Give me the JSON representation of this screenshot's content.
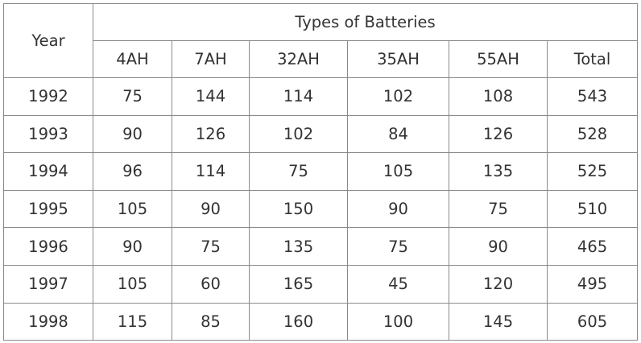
{
  "table": {
    "row_header": "Year",
    "group_header": "Types of Batteries",
    "columns": [
      "4AH",
      "7AH",
      "32AH",
      "35AH",
      "55AH",
      "Total"
    ],
    "rows": [
      {
        "year": "1992",
        "values": [
          "75",
          "144",
          "114",
          "102",
          "108",
          "543"
        ]
      },
      {
        "year": "1993",
        "values": [
          "90",
          "126",
          "102",
          "84",
          "126",
          "528"
        ]
      },
      {
        "year": "1994",
        "values": [
          "96",
          "114",
          "75",
          "105",
          "135",
          "525"
        ]
      },
      {
        "year": "1995",
        "values": [
          "105",
          "90",
          "150",
          "90",
          "75",
          "510"
        ]
      },
      {
        "year": "1996",
        "values": [
          "90",
          "75",
          "135",
          "75",
          "90",
          "465"
        ]
      },
      {
        "year": "1997",
        "values": [
          "105",
          "60",
          "165",
          "45",
          "120",
          "495"
        ]
      },
      {
        "year": "1998",
        "values": [
          "115",
          "85",
          "160",
          "100",
          "145",
          "605"
        ]
      }
    ]
  },
  "chart_data": {
    "type": "table",
    "row_header": "Year",
    "group_header": "Types of Batteries",
    "columns": [
      "4AH",
      "7AH",
      "32AH",
      "35AH",
      "55AH",
      "Total"
    ],
    "rows": [
      "1992",
      "1993",
      "1994",
      "1995",
      "1996",
      "1997",
      "1998"
    ],
    "values": [
      [
        75,
        144,
        114,
        102,
        108,
        543
      ],
      [
        90,
        126,
        102,
        84,
        126,
        528
      ],
      [
        96,
        114,
        75,
        105,
        135,
        525
      ],
      [
        105,
        90,
        150,
        90,
        75,
        510
      ],
      [
        90,
        75,
        135,
        75,
        90,
        465
      ],
      [
        105,
        60,
        165,
        45,
        120,
        495
      ],
      [
        115,
        85,
        160,
        100,
        145,
        605
      ]
    ]
  }
}
